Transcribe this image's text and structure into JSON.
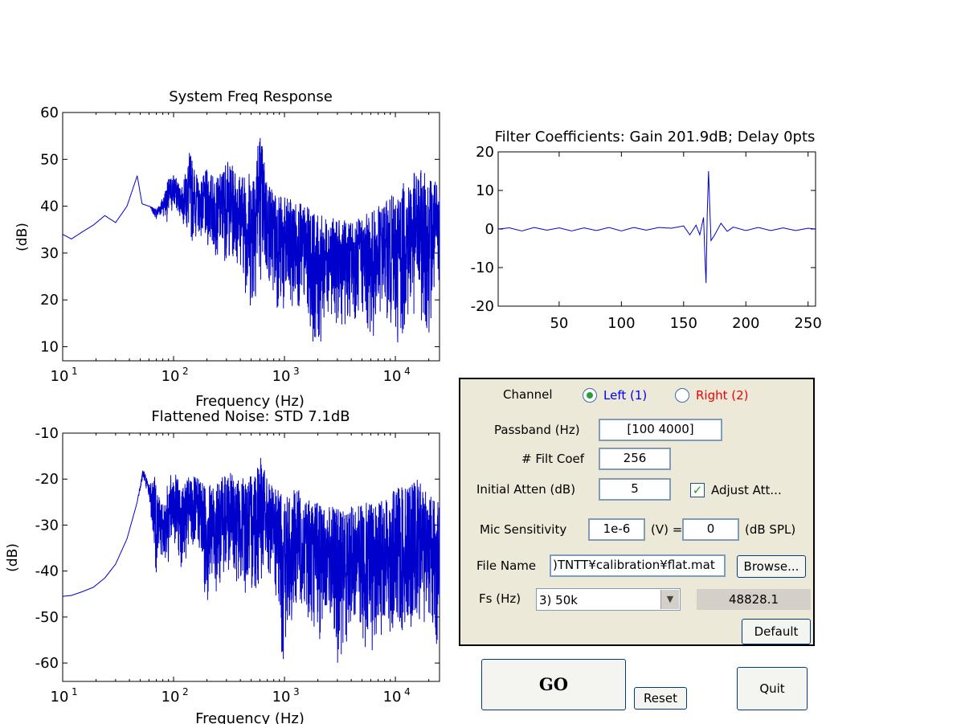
{
  "charts": {
    "system": {
      "title": "System Freq Response",
      "xlabel": "Frequency (Hz)",
      "ylabel": "(dB)",
      "y_ticks": [
        "60",
        "50",
        "40",
        "30",
        "20",
        "10"
      ],
      "x_ticks": [
        {
          "base": "10",
          "exp": "1"
        },
        {
          "base": "10",
          "exp": "2"
        },
        {
          "base": "10",
          "exp": "3"
        },
        {
          "base": "10",
          "exp": "4"
        }
      ]
    },
    "flattened": {
      "title": "Flattened Noise: STD 7.1dB",
      "xlabel": "Frequency (Hz)",
      "ylabel": "(dB)",
      "y_ticks": [
        "-10",
        "-20",
        "-30",
        "-40",
        "-50",
        "-60"
      ],
      "x_ticks": [
        {
          "base": "10",
          "exp": "1"
        },
        {
          "base": "10",
          "exp": "2"
        },
        {
          "base": "10",
          "exp": "3"
        },
        {
          "base": "10",
          "exp": "4"
        }
      ]
    },
    "filter": {
      "title": "Filter Coefficients: Gain 201.9dB; Delay 0pts",
      "y_ticks": [
        "20",
        "10",
        "0",
        "-10",
        "-20"
      ],
      "x_ticks": [
        "50",
        "100",
        "150",
        "200",
        "250"
      ]
    }
  },
  "chart_data": [
    {
      "type": "line",
      "title": "System Freq Response",
      "xlabel": "Frequency (Hz)",
      "ylabel": "(dB)",
      "x_scale": "log",
      "xlim": [
        10,
        25000
      ],
      "ylim": [
        7,
        60
      ],
      "color": "#0000cc",
      "grid": false,
      "x": [
        10,
        12,
        15,
        19,
        24,
        30,
        38,
        47,
        52,
        60,
        70,
        80,
        90,
        100,
        120,
        140,
        170,
        200,
        250,
        300,
        400,
        500,
        600,
        700,
        800,
        1000,
        1300,
        1600,
        2000,
        2500,
        3000,
        4000,
        5000,
        6000,
        8000,
        10000,
        13000,
        16000,
        20000,
        25000
      ],
      "series": [
        {
          "name": "upper",
          "values": [
            34,
            33,
            34.5,
            36,
            38,
            36.5,
            40,
            46.5,
            40.5,
            40,
            39.5,
            42,
            46,
            47,
            44,
            52,
            45,
            48,
            46,
            50,
            47,
            48,
            57,
            46,
            44,
            42,
            41,
            40,
            38,
            38,
            37,
            37,
            38,
            39,
            41,
            43,
            46,
            48,
            47,
            45
          ]
        },
        {
          "name": "lower",
          "values": [
            34,
            33,
            34.5,
            36,
            38,
            36.5,
            40,
            46.5,
            40.5,
            40,
            37,
            38,
            36,
            39,
            37,
            31,
            34,
            30,
            29,
            28,
            27,
            15,
            24,
            22,
            20,
            14,
            18,
            16,
            7,
            18,
            14,
            15,
            16,
            10,
            18,
            8,
            14,
            16,
            12,
            20
          ]
        }
      ]
    },
    {
      "type": "line",
      "title": "Filter Coefficients: Gain 201.9dB; Delay 0pts",
      "xlim": [
        1,
        256
      ],
      "ylim": [
        -20,
        20
      ],
      "color": "#0000cc",
      "grid": false,
      "x": [
        1,
        10,
        20,
        30,
        40,
        50,
        60,
        70,
        80,
        90,
        100,
        110,
        120,
        130,
        140,
        150,
        155,
        160,
        163,
        166,
        167,
        168,
        169,
        170,
        171,
        172,
        175,
        180,
        185,
        190,
        200,
        210,
        220,
        230,
        240,
        250,
        256
      ],
      "series": [
        {
          "name": "coefficients",
          "values": [
            0,
            0.3,
            -0.5,
            0.4,
            -0.3,
            0.3,
            -0.5,
            0.3,
            -0.4,
            0.4,
            -0.5,
            0.4,
            -0.3,
            0.4,
            0.2,
            0.8,
            -1.5,
            1.0,
            -1.5,
            3,
            -6,
            -14,
            4,
            15,
            6,
            -3,
            -1.5,
            1.5,
            -0.6,
            0.5,
            -0.4,
            0.4,
            -0.4,
            0.3,
            -0.4,
            0.2,
            0
          ]
        }
      ]
    },
    {
      "type": "line",
      "title": "Flattened Noise: STD 7.1dB",
      "xlabel": "Frequency (Hz)",
      "ylabel": "(dB)",
      "x_scale": "log",
      "xlim": [
        10,
        25000
      ],
      "ylim": [
        -64,
        -10
      ],
      "color": "#0000cc",
      "grid": false,
      "x": [
        10,
        12,
        15,
        19,
        24,
        30,
        38,
        47,
        53,
        60,
        70,
        80,
        90,
        100,
        120,
        140,
        170,
        200,
        250,
        300,
        400,
        500,
        600,
        700,
        800,
        1000,
        1300,
        1600,
        2000,
        2500,
        3000,
        4000,
        5000,
        6000,
        8000,
        10000,
        13000,
        16000,
        20000,
        25000
      ],
      "series": [
        {
          "name": "upper",
          "values": [
            -45.5,
            -45.3,
            -44.5,
            -43.5,
            -41.5,
            -38.5,
            -33,
            -25,
            -17.5,
            -21,
            -19,
            -26,
            -20,
            -18,
            -22,
            -19,
            -20,
            -20,
            -21,
            -18,
            -20,
            -19,
            -13.5,
            -20,
            -22,
            -23,
            -22,
            -24,
            -25,
            -26,
            -26,
            -26,
            -25,
            -25,
            -24,
            -22,
            -21,
            -20,
            -22,
            -24
          ]
        },
        {
          "name": "lower",
          "values": [
            -45.5,
            -45.3,
            -44.5,
            -43.5,
            -41.5,
            -38.5,
            -33,
            -25,
            -20,
            -24,
            -42,
            -38,
            -40,
            -35,
            -40,
            -38,
            -36,
            -50,
            -44,
            -42,
            -44,
            -47,
            -44,
            -42,
            -44,
            -63,
            -48,
            -50,
            -56,
            -50,
            -62,
            -52,
            -55,
            -60,
            -52,
            -58,
            -52,
            -55,
            -50,
            -63
          ]
        }
      ]
    }
  ],
  "controls": {
    "channel_label": "Channel",
    "left_option": "Left (1)",
    "right_option": "Right (2)",
    "left_color": "#0000ee",
    "right_color": "#ee0000",
    "passband_label": "Passband (Hz)",
    "passband_value": "[100 4000]",
    "filt_coef_label": "# Filt Coef",
    "filt_coef_value": "256",
    "initial_atten_label": "Initial Atten (dB)",
    "initial_atten_value": "5",
    "adjust_att_label": "Adjust Att...",
    "mic_sensitivity_label": "Mic Sensitivity",
    "mic_sensitivity_value": "1e-6",
    "volts_label": "(V) =",
    "spl_value": "0",
    "spl_label": "(dB SPL)",
    "file_name_label": "File Name",
    "file_name_value": ")TNTT¥calibration¥flat.mat",
    "browse_label": "Browse...",
    "fs_label": "Fs (Hz)",
    "fs_selected": "3) 50k",
    "fs_actual": "48828.1",
    "default_label": "Default"
  },
  "buttons": {
    "go": "GO",
    "reset": "Reset",
    "quit": "Quit"
  }
}
